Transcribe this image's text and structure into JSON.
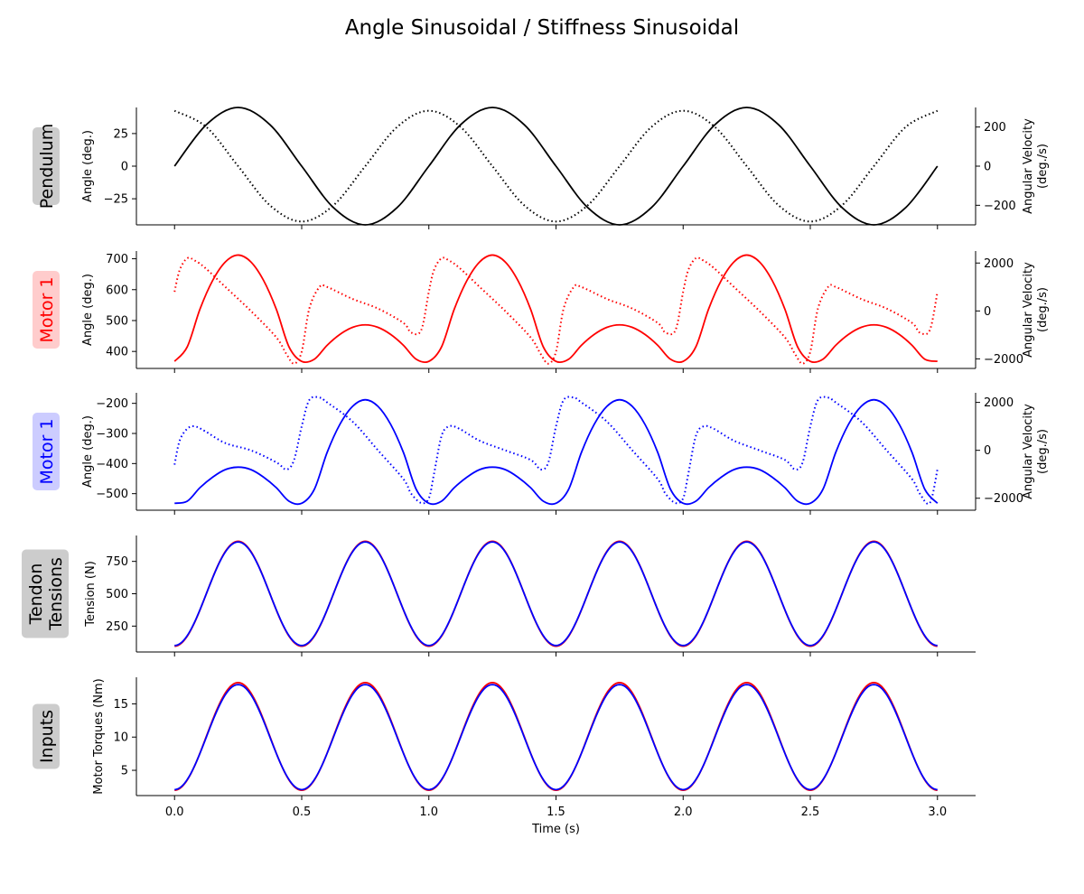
{
  "figure": {
    "title": "Angle Sinusoidal / Stiffness Sinusoidal"
  },
  "chart_data": [
    {
      "type": "line",
      "row_label": "Pendulum",
      "row_label_color": "#000000",
      "row_label_bg": "#cccccc",
      "ylabel": "Angle (deg.)",
      "ylabel_right": "Angular Velocity\n(deg./s)",
      "ylim": [
        -45,
        45
      ],
      "yticks": [
        -25,
        0,
        25
      ],
      "ylim_right": [
        -300,
        300
      ],
      "yticks_right": [
        -200,
        0,
        200
      ],
      "xlim": [
        -0.15,
        3.15
      ],
      "series": [
        {
          "role": "angle",
          "axis": "left",
          "style": "solid",
          "color": "#000000",
          "x": [
            0,
            0.125,
            0.25,
            0.375,
            0.5,
            0.625,
            0.75,
            0.875,
            1.0,
            1.125,
            1.25,
            1.375,
            1.5,
            1.625,
            1.75,
            1.875,
            2.0,
            2.125,
            2.25,
            2.375,
            2.5,
            2.625,
            2.75,
            2.875,
            3.0
          ],
          "y": [
            0,
            31.8,
            45,
            31.8,
            0,
            -31.8,
            -45,
            -31.8,
            0,
            31.8,
            45,
            31.8,
            0,
            -31.8,
            -45,
            -31.8,
            0,
            31.8,
            45,
            31.8,
            0,
            -31.8,
            -45,
            -31.8,
            0
          ]
        },
        {
          "role": "angular velocity",
          "axis": "right",
          "style": "dotted",
          "color": "#000000",
          "x": [
            0,
            0.125,
            0.25,
            0.375,
            0.5,
            0.625,
            0.75,
            0.875,
            1.0,
            1.125,
            1.25,
            1.375,
            1.5,
            1.625,
            1.75,
            1.875,
            2.0,
            2.125,
            2.25,
            2.375,
            2.5,
            2.625,
            2.75,
            2.875,
            3.0
          ],
          "y": [
            283,
            200,
            0,
            -200,
            -283,
            -200,
            0,
            200,
            283,
            200,
            0,
            -200,
            -283,
            -200,
            0,
            200,
            283,
            200,
            0,
            -200,
            -283,
            -200,
            0,
            200,
            283
          ]
        }
      ]
    },
    {
      "type": "line",
      "row_label": "Motor 1",
      "row_label_color": "#ff0000",
      "row_label_bg": "#ffcccc",
      "ylabel": "Angle (deg.)",
      "ylabel_right": "Angular Velocity\n(deg./s)",
      "ylim": [
        345,
        725
      ],
      "yticks": [
        400,
        500,
        600,
        700
      ],
      "ylim_right": [
        -2400,
        2500
      ],
      "yticks_right": [
        -2000,
        0,
        2000
      ],
      "xlim": [
        -0.15,
        3.15
      ],
      "series": [
        {
          "role": "angle",
          "axis": "left",
          "style": "solid",
          "color": "#ff0000",
          "x": [
            0,
            0.05,
            0.1,
            0.15,
            0.2,
            0.25,
            0.3,
            0.35,
            0.4,
            0.45,
            0.5,
            0.55,
            0.6,
            0.65,
            0.7,
            0.75,
            0.8,
            0.85,
            0.9,
            0.95,
            1.0,
            1.05,
            1.1,
            1.15,
            1.2,
            1.25,
            1.3,
            1.35,
            1.4,
            1.45,
            1.5,
            1.55,
            1.6,
            1.65,
            1.7,
            1.75,
            1.8,
            1.85,
            1.9,
            1.95,
            2.0,
            2.05,
            2.1,
            2.15,
            2.2,
            2.25,
            2.3,
            2.35,
            2.4,
            2.45,
            2.5,
            2.55,
            2.6,
            2.65,
            2.7,
            2.75,
            2.8,
            2.85,
            2.9,
            2.95,
            3.0
          ],
          "y": [
            368,
            415,
            537,
            630,
            690,
            712,
            690,
            630,
            537,
            415,
            368,
            375,
            420,
            455,
            478,
            486,
            478,
            455,
            420,
            375,
            368,
            415,
            537,
            630,
            690,
            712,
            690,
            630,
            537,
            415,
            368,
            375,
            420,
            455,
            478,
            486,
            478,
            455,
            420,
            375,
            368,
            415,
            537,
            630,
            690,
            712,
            690,
            630,
            537,
            415,
            368,
            375,
            420,
            455,
            478,
            486,
            478,
            455,
            420,
            375,
            368
          ]
        },
        {
          "role": "angular velocity",
          "axis": "right",
          "style": "dotted",
          "color": "#ff0000",
          "x": [
            0,
            0.02,
            0.05,
            0.08,
            0.12,
            0.2,
            0.3,
            0.4,
            0.44,
            0.47,
            0.5,
            0.53,
            0.57,
            0.6,
            0.7,
            0.8,
            0.9,
            0.93,
            0.97,
            1.0,
            1.02,
            1.05,
            1.08,
            1.12,
            1.2,
            1.3,
            1.4,
            1.44,
            1.47,
            1.5,
            1.53,
            1.57,
            1.6,
            1.7,
            1.8,
            1.9,
            1.93,
            1.97,
            2.0,
            2.02,
            2.05,
            2.08,
            2.12,
            2.2,
            2.3,
            2.4,
            2.44,
            2.47,
            2.5,
            2.53,
            2.57,
            2.6,
            2.7,
            2.8,
            2.9,
            2.93,
            2.97,
            3.0
          ],
          "y": [
            800,
            1700,
            2200,
            2100,
            1800,
            1000,
            0,
            -1100,
            -1800,
            -2200,
            -1700,
            100,
            1000,
            1000,
            500,
            100,
            -500,
            -900,
            -800,
            800,
            1700,
            2200,
            2100,
            1800,
            1000,
            0,
            -1100,
            -1800,
            -2200,
            -1700,
            100,
            1000,
            1000,
            500,
            100,
            -500,
            -900,
            -800,
            800,
            1700,
            2200,
            2100,
            1800,
            1000,
            0,
            -1100,
            -1800,
            -2200,
            -1700,
            100,
            1000,
            1000,
            500,
            100,
            -500,
            -900,
            -800,
            800
          ]
        }
      ]
    },
    {
      "type": "line",
      "row_label": "Motor 1",
      "row_label_color": "#0000ff",
      "row_label_bg": "#ccccff",
      "ylabel": "Angle (deg.)",
      "ylabel_right": "Angular Velocity\n(deg./s)",
      "ylim": [
        -555,
        -165
      ],
      "yticks": [
        -500,
        -400,
        -300,
        -200
      ],
      "ylim_right": [
        -2500,
        2400
      ],
      "yticks_right": [
        -2000,
        0,
        2000
      ],
      "xlim": [
        -0.15,
        3.15
      ],
      "series": [
        {
          "role": "angle",
          "axis": "left",
          "style": "solid",
          "color": "#0000ff",
          "x": [
            0,
            0.05,
            0.1,
            0.15,
            0.2,
            0.25,
            0.3,
            0.35,
            0.4,
            0.45,
            0.5,
            0.55,
            0.6,
            0.65,
            0.7,
            0.75,
            0.8,
            0.85,
            0.9,
            0.95,
            1.0,
            1.05,
            1.1,
            1.15,
            1.2,
            1.25,
            1.3,
            1.35,
            1.4,
            1.45,
            1.5,
            1.55,
            1.6,
            1.65,
            1.7,
            1.75,
            1.8,
            1.85,
            1.9,
            1.95,
            2.0,
            2.05,
            2.1,
            2.15,
            2.2,
            2.25,
            2.3,
            2.35,
            2.4,
            2.45,
            2.5,
            2.55,
            2.6,
            2.65,
            2.7,
            2.75,
            2.8,
            2.85,
            2.9,
            2.95,
            3.0
          ],
          "y": [
            -532,
            -525,
            -480,
            -445,
            -420,
            -412,
            -420,
            -445,
            -480,
            -525,
            -532,
            -485,
            -363,
            -270,
            -210,
            -188,
            -210,
            -270,
            -363,
            -485,
            -532,
            -525,
            -480,
            -445,
            -420,
            -412,
            -420,
            -445,
            -480,
            -525,
            -532,
            -485,
            -363,
            -270,
            -210,
            -188,
            -210,
            -270,
            -363,
            -485,
            -532,
            -525,
            -480,
            -445,
            -420,
            -412,
            -420,
            -445,
            -480,
            -525,
            -532,
            -485,
            -363,
            -270,
            -210,
            -188,
            -210,
            -270,
            -363,
            -485,
            -532
          ]
        },
        {
          "role": "angular velocity",
          "axis": "right",
          "style": "dotted",
          "color": "#0000ff",
          "x": [
            0,
            0.02,
            0.05,
            0.08,
            0.12,
            0.2,
            0.3,
            0.4,
            0.44,
            0.47,
            0.5,
            0.53,
            0.57,
            0.6,
            0.7,
            0.8,
            0.9,
            0.93,
            0.97,
            1.0,
            1.02,
            1.05,
            1.08,
            1.12,
            1.2,
            1.3,
            1.4,
            1.44,
            1.47,
            1.5,
            1.53,
            1.57,
            1.6,
            1.7,
            1.8,
            1.9,
            1.93,
            1.97,
            2.0,
            2.02,
            2.05,
            2.08,
            2.12,
            2.2,
            2.3,
            2.4,
            2.44,
            2.47,
            2.5,
            2.53,
            2.57,
            2.6,
            2.7,
            2.8,
            2.9,
            2.93,
            2.97,
            3.0
          ],
          "y": [
            -600,
            400,
            900,
            1000,
            800,
            300,
            0,
            -500,
            -800,
            -400,
            1000,
            2100,
            2200,
            2000,
            1200,
            0,
            -1200,
            -1800,
            -2200,
            -2000,
            -1000,
            600,
            1000,
            900,
            400,
            0,
            -400,
            -800,
            -500,
            1000,
            2100,
            2200,
            2000,
            1200,
            0,
            -1200,
            -1800,
            -2200,
            -2000,
            -1000,
            600,
            1000,
            900,
            400,
            0,
            -400,
            -800,
            -500,
            1000,
            2100,
            2200,
            2000,
            1200,
            0,
            -1200,
            -1800,
            -2200,
            -800
          ]
        }
      ]
    },
    {
      "type": "line",
      "row_label": "Tendon\nTensions",
      "row_label_color": "#000000",
      "row_label_bg": "#cccccc",
      "ylabel": "Tension (N)",
      "ylim": [
        50,
        950
      ],
      "yticks": [
        250,
        500,
        750
      ],
      "xlim": [
        -0.15,
        3.15
      ],
      "series": [
        {
          "role": "tension 1",
          "axis": "left",
          "style": "solid",
          "color": "#ff0000",
          "kind": "cos",
          "mean": 500,
          "amp": 405,
          "period": 0.5,
          "sign": -1
        },
        {
          "role": "tension 2",
          "axis": "left",
          "style": "solid",
          "color": "#0000ff",
          "kind": "cos",
          "mean": 500,
          "amp": 400,
          "period": 0.5,
          "sign": -1
        }
      ]
    },
    {
      "type": "line",
      "row_label": "Inputs",
      "row_label_color": "#000000",
      "row_label_bg": "#cccccc",
      "ylabel": "Motor Torques (Nm)",
      "ylim": [
        1.2,
        19
      ],
      "yticks": [
        5,
        10,
        15
      ],
      "xlim": [
        -0.15,
        3.15
      ],
      "xticks": [
        0.0,
        0.5,
        1.0,
        1.5,
        2.0,
        2.5,
        3.0
      ],
      "xlabel": "Time (s)",
      "series": [
        {
          "role": "torque 1",
          "axis": "left",
          "style": "solid",
          "color": "#ff0000",
          "kind": "cos",
          "mean": 10.1,
          "amp": 8.1,
          "period": 0.5,
          "sign": -1
        },
        {
          "role": "torque 2",
          "axis": "left",
          "style": "solid",
          "color": "#0000ff",
          "kind": "cos",
          "mean": 10.0,
          "amp": 7.9,
          "period": 0.5,
          "sign": -1
        }
      ]
    }
  ]
}
